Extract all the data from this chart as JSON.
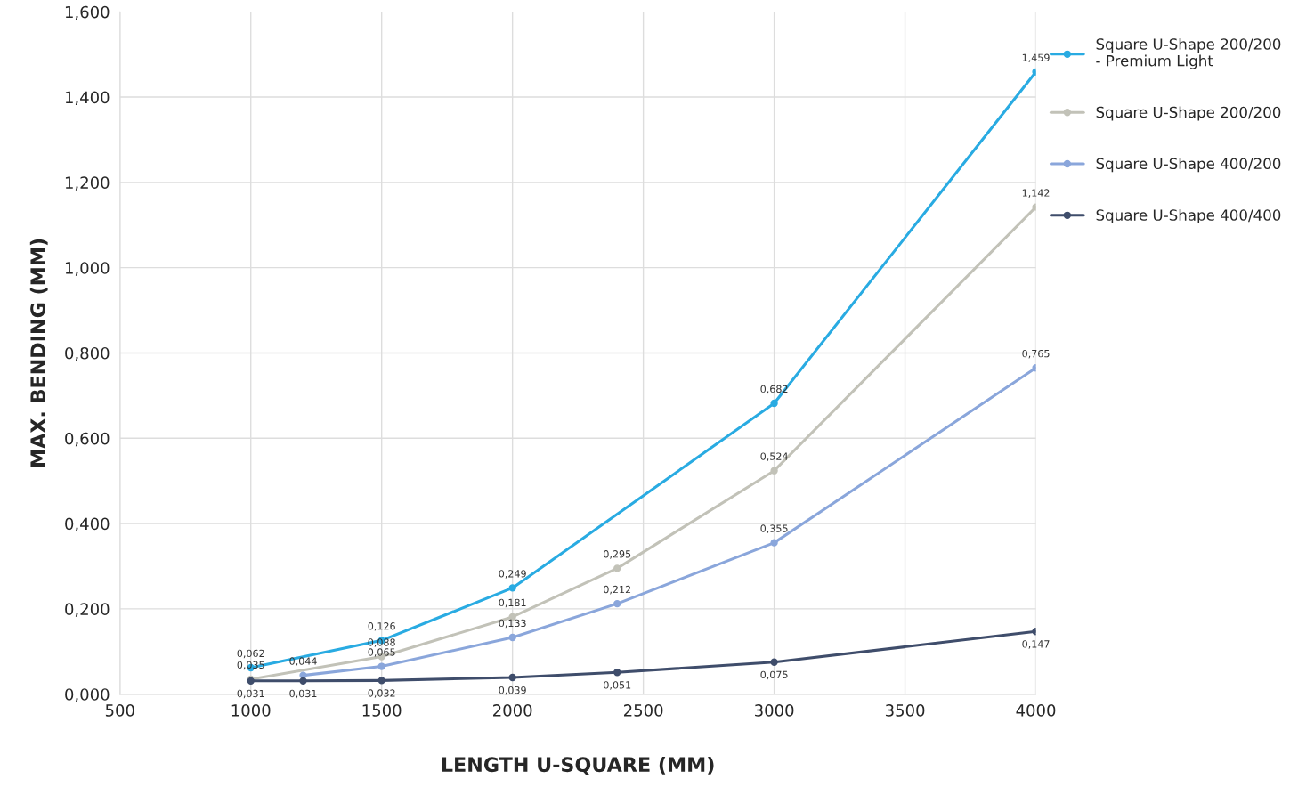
{
  "chart_data": {
    "type": "line",
    "xlabel": "LENGTH U-SQUARE (MM)",
    "ylabel": "MAX. BENDING (MM)",
    "xlim": [
      500,
      4000
    ],
    "xticks": [
      500,
      1000,
      1500,
      2000,
      2500,
      3000,
      3500,
      4000
    ],
    "ylim": [
      0,
      1.6
    ],
    "yticks": [
      {
        "value": 0,
        "label": "0,000"
      },
      {
        "value": 0.2,
        "label": "0,200"
      },
      {
        "value": 0.4,
        "label": "0,400"
      },
      {
        "value": 0.6,
        "label": "0,600"
      },
      {
        "value": 0.8,
        "label": "0,800"
      },
      {
        "value": 1.0,
        "label": "1,000"
      },
      {
        "value": 1.2,
        "label": "1,200"
      },
      {
        "value": 1.4,
        "label": "1,400"
      },
      {
        "value": 1.6,
        "label": "1,600"
      }
    ],
    "grid": true,
    "legend": "right",
    "marker": "circle",
    "line_style": "solid",
    "series": [
      {
        "name": "Square U-Shape 200/200\n- Premium Light",
        "color": "#29abe2",
        "x": [
          1000,
          1500,
          2000,
          3000,
          4000
        ],
        "values": [
          0.062,
          0.126,
          0.249,
          0.682,
          1.459
        ],
        "value_labels": [
          "0,062",
          "0,126",
          "0,249",
          "0,682",
          "1,459"
        ]
      },
      {
        "name": "Square U-Shape 200/200",
        "color": "#c2c2b8",
        "x": [
          1000,
          1500,
          2000,
          2400,
          3000,
          4000
        ],
        "values": [
          0.035,
          0.088,
          0.181,
          0.295,
          0.524,
          1.142
        ],
        "value_labels": [
          "0,035",
          "0,088",
          "0,181",
          "0,295",
          "0,524",
          "1,142"
        ]
      },
      {
        "name": "Square U-Shape 400/200",
        "color": "#8aa6db",
        "x": [
          1200,
          1500,
          2000,
          2400,
          3000,
          4000
        ],
        "values": [
          0.044,
          0.065,
          0.133,
          0.212,
          0.355,
          0.765
        ],
        "value_labels": [
          "0,044",
          "0,065",
          "0,133",
          "0,212",
          "0,355",
          "0,765"
        ]
      },
      {
        "name": "Square U-Shape 400/400",
        "color": "#3f4d6b",
        "x": [
          1000,
          1200,
          1500,
          2000,
          2400,
          3000,
          4000
        ],
        "values": [
          0.031,
          0.031,
          0.032,
          0.039,
          0.051,
          0.075,
          0.147
        ],
        "value_labels": [
          "0,031",
          "0,031",
          "0,032",
          "0,039",
          "0,051",
          "0,075",
          "0,147"
        ]
      }
    ]
  }
}
